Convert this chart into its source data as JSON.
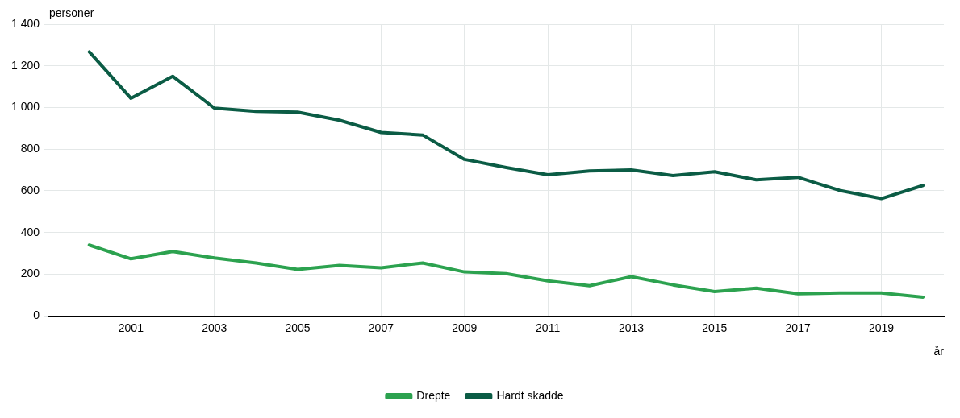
{
  "chart_data": {
    "type": "line",
    "ylabel": "personer",
    "xlabel": "år",
    "x": [
      2000,
      2001,
      2002,
      2003,
      2004,
      2005,
      2006,
      2007,
      2008,
      2009,
      2010,
      2011,
      2012,
      2013,
      2014,
      2015,
      2016,
      2017,
      2018,
      2019,
      2020
    ],
    "series": [
      {
        "name": "Drepte",
        "color": "#2ca24f",
        "values": [
          340,
          274,
          309,
          278,
          254,
          223,
          242,
          231,
          254,
          211,
          203,
          168,
          145,
          188,
          149,
          117,
          133,
          106,
          110,
          110,
          90
        ]
      },
      {
        "name": "Hardt skadde",
        "color": "#0b5c45",
        "values": [
          1267,
          1044,
          1150,
          997,
          982,
          978,
          939,
          880,
          868,
          751,
          712,
          677,
          696,
          700,
          673,
          692,
          653,
          665,
          602,
          563,
          626
        ]
      }
    ],
    "xlim": [
      1999,
      2020.5
    ],
    "xticks": [
      2001,
      2003,
      2005,
      2007,
      2009,
      2011,
      2013,
      2015,
      2017,
      2019
    ],
    "ylim": [
      0,
      1400
    ],
    "yticks": [
      0,
      200,
      400,
      600,
      800,
      {
        "value": 1000,
        "label": "1 000"
      },
      {
        "value": 1200,
        "label": "1 200"
      },
      {
        "value": 1400,
        "label": "1 400"
      }
    ],
    "grid": true,
    "legend": "bottom",
    "marker": "none",
    "line_style": "solid"
  }
}
